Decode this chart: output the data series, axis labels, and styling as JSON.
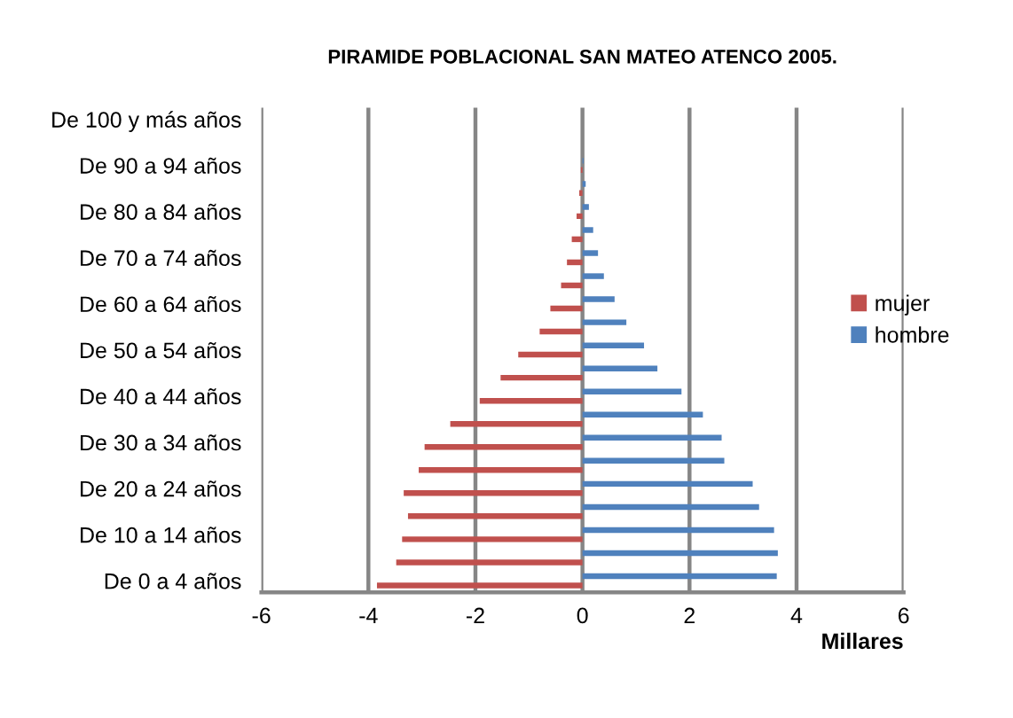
{
  "chart_data": {
    "type": "bar",
    "orientation": "horizontal",
    "title": "PIRAMIDE POBLACIONAL SAN MATEO ATENCO 2005.",
    "xlabel": "Millares",
    "categories": [
      "De 100 y más años",
      null,
      "De 90 a 94 años",
      null,
      "De 80 a 84 años",
      null,
      "De 70 a 74 años",
      null,
      "De 60 a 64 años",
      null,
      "De 50 a 54 años",
      null,
      "De 40 a 44 años",
      null,
      "De 30 a 34 años",
      null,
      "De 20 a 24 años",
      null,
      "De 10 a 14 años",
      null,
      "De 0 a 4 años"
    ],
    "series": [
      {
        "name": "mujer",
        "color": "#c0504d",
        "values": [
          null,
          null,
          -0.03,
          -0.06,
          -0.11,
          -0.2,
          -0.29,
          -0.4,
          -0.6,
          -0.8,
          -1.2,
          -1.53,
          -1.92,
          -2.47,
          -2.95,
          -3.06,
          -3.34,
          -3.26,
          -3.37,
          -3.48,
          -3.84
        ]
      },
      {
        "name": "hombre",
        "color": "#4f81bd",
        "values": [
          null,
          null,
          0.02,
          0.06,
          0.12,
          0.2,
          0.29,
          0.4,
          0.6,
          0.82,
          1.15,
          1.4,
          1.85,
          2.25,
          2.6,
          2.65,
          3.18,
          3.3,
          3.58,
          3.65,
          3.63
        ]
      }
    ],
    "xlim": [
      -6,
      6
    ],
    "xticks": [
      -6,
      -4,
      -2,
      0,
      2,
      4,
      6
    ],
    "grid": "x",
    "legend": "right"
  }
}
